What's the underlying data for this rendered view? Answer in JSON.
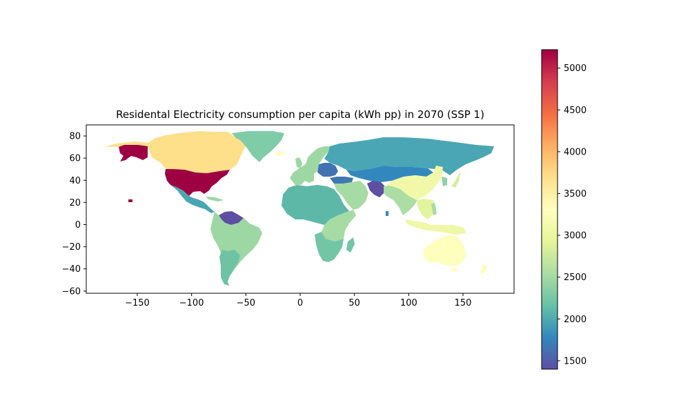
{
  "chart_data": {
    "type": "choropleth",
    "title": "Residental Electricity consumption per capita (kWh pp) in 2070 (SSP 1)",
    "xlim": [
      -197,
      197
    ],
    "ylim": [
      -62,
      90
    ],
    "x_ticks": [
      -150,
      -100,
      -50,
      0,
      50,
      100,
      150
    ],
    "x_tick_labels": [
      "−150",
      "−100",
      "−50",
      "0",
      "50",
      "100",
      "150"
    ],
    "y_ticks": [
      -60,
      -40,
      -20,
      0,
      20,
      40,
      60,
      80
    ],
    "y_tick_labels": [
      "−60",
      "−40",
      "−20",
      "0",
      "20",
      "40",
      "60",
      "80"
    ],
    "colorbar": {
      "colormap": "Spectral_r",
      "min": 1400,
      "max": 5220,
      "ticks": [
        1500,
        2000,
        2500,
        3000,
        3500,
        4000,
        4500,
        5000
      ],
      "tick_labels": [
        "1500",
        "2000",
        "2500",
        "3000",
        "3500",
        "4000",
        "4500",
        "5000"
      ]
    },
    "regions": [
      {
        "name": "USA",
        "value": 5200,
        "color": "#9e0142"
      },
      {
        "name": "Canada",
        "value": 3650,
        "color": "#fee08b"
      },
      {
        "name": "Greenland",
        "value": 2350,
        "color": "#7fcca9"
      },
      {
        "name": "Mexico & Central America",
        "value": 2100,
        "color": "#4aa6b4"
      },
      {
        "name": "Caribbean",
        "value": 2450,
        "color": "#9dd8a4"
      },
      {
        "name": "Venezuela & Guianas",
        "value": 1500,
        "color": "#5e4fa2"
      },
      {
        "name": "South America",
        "value": 2450,
        "color": "#9dd8a4"
      },
      {
        "name": "Southern Cone",
        "value": 2250,
        "color": "#6ec3a3"
      },
      {
        "name": "Western Europe",
        "value": 2450,
        "color": "#9dd8a4"
      },
      {
        "name": "Central Europe",
        "value": 1700,
        "color": "#4173b3"
      },
      {
        "name": "Turkey",
        "value": 1700,
        "color": "#3f78b2"
      },
      {
        "name": "Russia",
        "value": 2050,
        "color": "#4aa6b4"
      },
      {
        "name": "Central Asia",
        "value": 1900,
        "color": "#3288bd"
      },
      {
        "name": "Middle East",
        "value": 2550,
        "color": "#a7dba4"
      },
      {
        "name": "Northern Africa",
        "value": 2150,
        "color": "#5eb8a7"
      },
      {
        "name": "East Africa",
        "value": 2550,
        "color": "#a7dba4"
      },
      {
        "name": "Southern Africa",
        "value": 2300,
        "color": "#72c6a5"
      },
      {
        "name": "South Asia",
        "value": 2600,
        "color": "#abdda4"
      },
      {
        "name": "Pakistan & Afghanistan",
        "value": 1500,
        "color": "#5e4fa2"
      },
      {
        "name": "China",
        "value": 3100,
        "color": "#f1f9a9"
      },
      {
        "name": "Korea",
        "value": 2400,
        "color": "#8dd2a4"
      },
      {
        "name": "Japan",
        "value": 2800,
        "color": "#d3ee9e"
      },
      {
        "name": "Southeast Asia",
        "value": 2900,
        "color": "#e3f49f"
      },
      {
        "name": "Indonesia",
        "value": 3000,
        "color": "#eef8a6"
      },
      {
        "name": "Oceania",
        "value": 3300,
        "color": "#fefebd"
      }
    ]
  }
}
